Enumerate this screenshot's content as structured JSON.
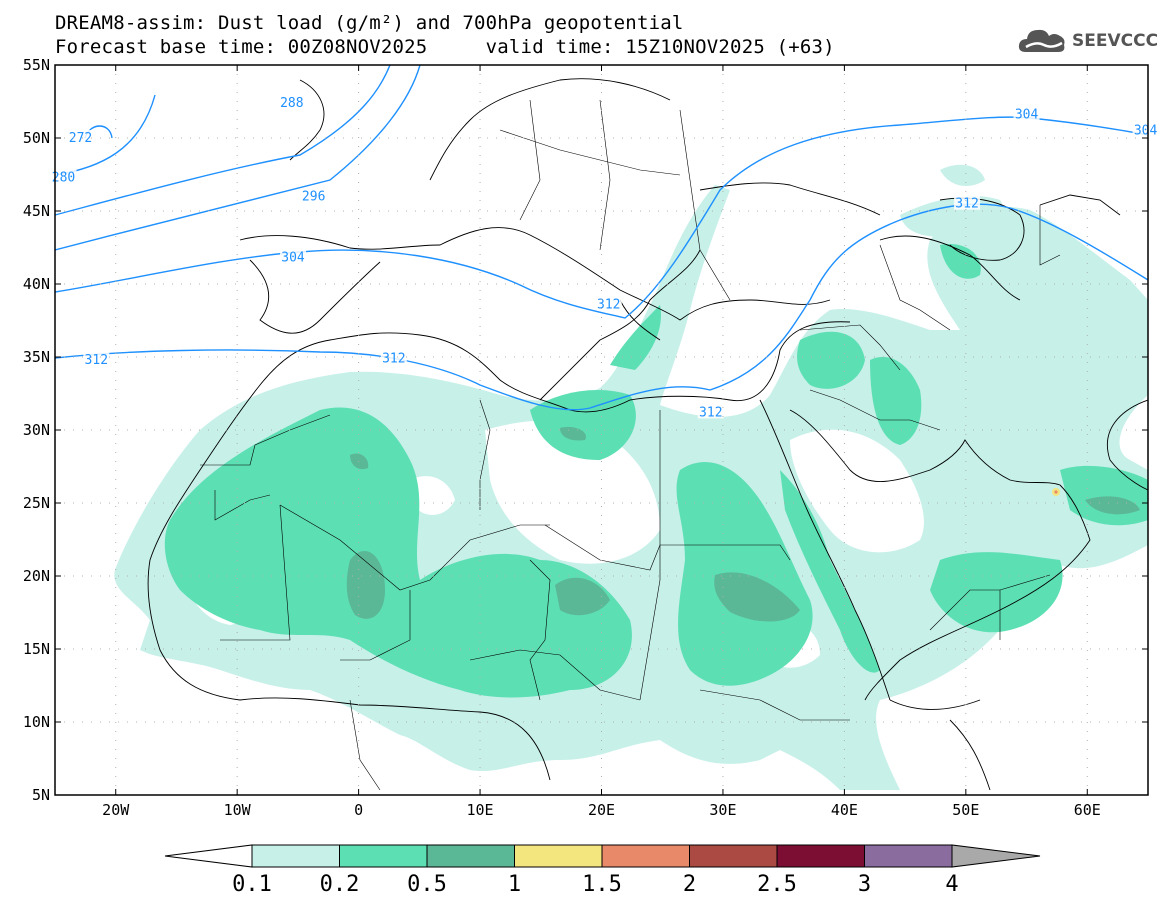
{
  "header": {
    "title": "DREAM8-assim: Dust load (g/m²) and 700hPa geopotential",
    "subtitle": "Forecast base time: 00Z08NOV2025     valid time: 15Z10NOV2025 (+63)"
  },
  "logo": {
    "text": "SEEVCCC",
    "icon": "cloud-icon"
  },
  "map": {
    "lon_range": [
      -25,
      65
    ],
    "lat_range": [
      5,
      55
    ],
    "lat_ticks": [
      "55N",
      "50N",
      "45N",
      "40N",
      "35N",
      "30N",
      "25N",
      "20N",
      "15N",
      "10N",
      "5N"
    ],
    "lon_ticks": [
      "20W",
      "10W",
      "0",
      "10E",
      "20E",
      "30E",
      "40E",
      "50E",
      "60E"
    ],
    "grid": "dotted",
    "contour_color": "#1e90ff",
    "contour_labels": [
      {
        "text": "272",
        "lon": -22.9,
        "lat": 50.0
      },
      {
        "text": "280",
        "lon": -24.3,
        "lat": 47.3
      },
      {
        "text": "288",
        "lon": -5.5,
        "lat": 52.4
      },
      {
        "text": "296",
        "lon": -3.7,
        "lat": 46.0
      },
      {
        "text": "304",
        "lon": -5.4,
        "lat": 41.8
      },
      {
        "text": "304",
        "lon": 55.0,
        "lat": 51.6
      },
      {
        "text": "304",
        "lon": 64.8,
        "lat": 50.5
      },
      {
        "text": "312",
        "lon": -21.6,
        "lat": 34.8
      },
      {
        "text": "312",
        "lon": 2.9,
        "lat": 34.9
      },
      {
        "text": "312",
        "lon": 20.6,
        "lat": 38.6
      },
      {
        "text": "312",
        "lon": 29.0,
        "lat": 31.2
      },
      {
        "text": "312",
        "lon": 50.1,
        "lat": 45.5
      }
    ]
  },
  "colorbar": {
    "labels": [
      "0.1",
      "0.2",
      "0.5",
      "1",
      "1.5",
      "2",
      "2.5",
      "3",
      "4"
    ],
    "colors": [
      "#c6f0e8",
      "#5ddfb4",
      "#5bb897",
      "#f4e67f",
      "#e8896a",
      "#ab4a43",
      "#7c0d33",
      "#8a6d9e"
    ],
    "extend_low_color": "#ffffff",
    "extend_high_color": "#a9a9a9"
  }
}
